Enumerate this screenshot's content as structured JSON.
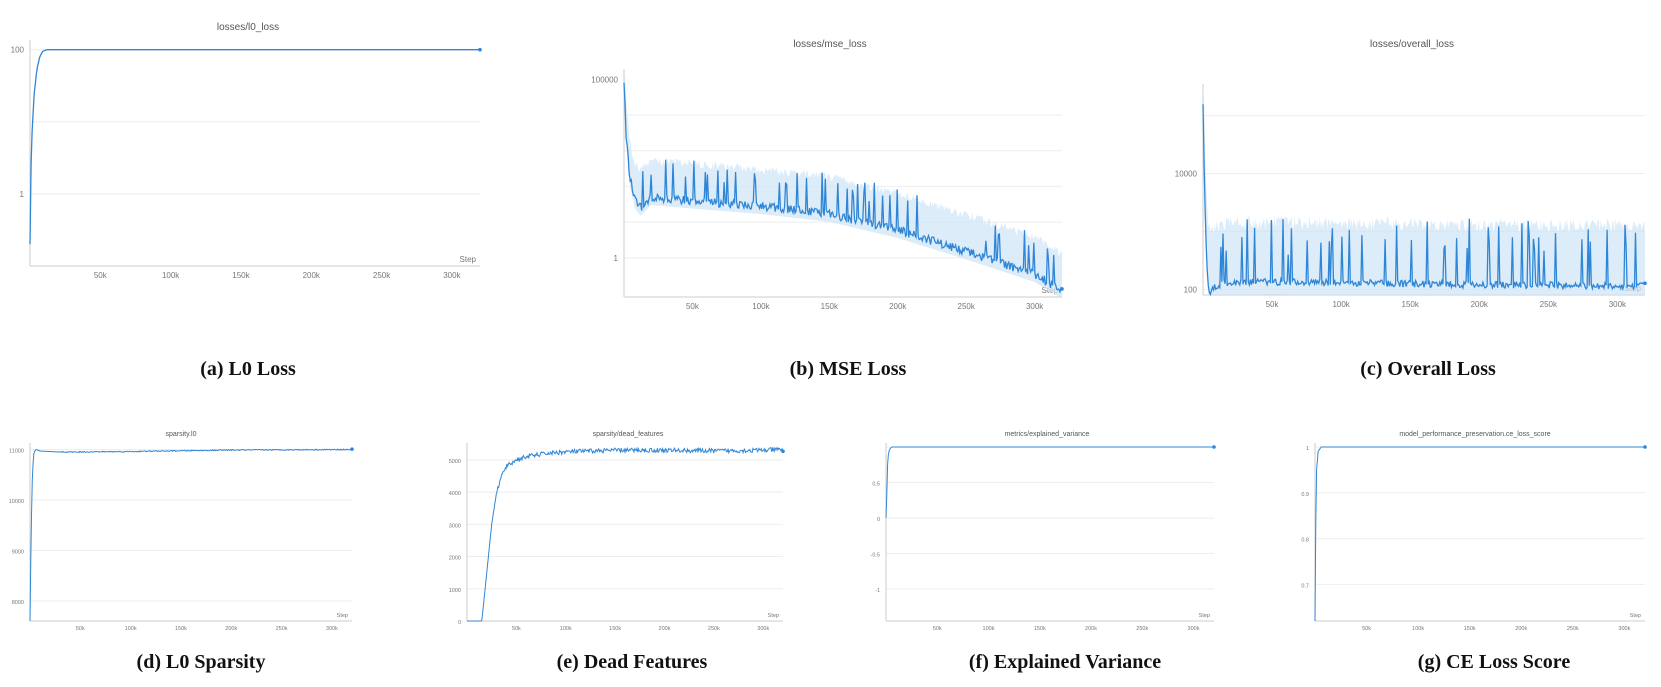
{
  "figure": {
    "colors": {
      "line": "#2f86d6",
      "band": "#cfe4f7",
      "axis": "#cccccc",
      "grid": "#eeeeee"
    }
  },
  "chart_data": [
    {
      "id": "a",
      "type": "line",
      "title": "losses/l0_loss",
      "caption": "(a) L0 Loss",
      "xlabel": "Step",
      "xlim": [
        0,
        320000
      ],
      "yscale": "log",
      "ylim": [
        0.1,
        120
      ],
      "xticks": [
        50000,
        100000,
        150000,
        200000,
        250000,
        300000
      ],
      "xtick_labels": [
        "50k",
        "100k",
        "150k",
        "200k",
        "250k",
        "300k"
      ],
      "yticks": [
        100,
        1
      ],
      "ytick_labels": [
        "100",
        "1"
      ],
      "ygrid": [
        100,
        10,
        1,
        0.1
      ],
      "band": false,
      "x": [
        0,
        800,
        1600,
        3000,
        5000,
        7000,
        9000,
        12000,
        320000
      ],
      "y": [
        0.2,
        3,
        8,
        25,
        55,
        80,
        95,
        100,
        100
      ]
    },
    {
      "id": "b",
      "type": "line",
      "title": "losses/mse_loss",
      "caption": "(b) MSE Loss",
      "xlabel": "Step",
      "xlim": [
        0,
        320000
      ],
      "yscale": "log",
      "ylim": [
        0.08,
        150000
      ],
      "xticks": [
        50000,
        100000,
        150000,
        200000,
        250000,
        300000
      ],
      "xtick_labels": [
        "50k",
        "100k",
        "150k",
        "200k",
        "250k",
        "300k"
      ],
      "yticks": [
        100000,
        1
      ],
      "ytick_labels": [
        "100000",
        "1"
      ],
      "ygrid": [
        10000,
        1000,
        100,
        10,
        1
      ],
      "band": true,
      "spikes": true,
      "noise": 0.12,
      "x": [
        0,
        1500,
        4000,
        8000,
        12000,
        20000,
        50000,
        100000,
        150000,
        200000,
        250000,
        300000,
        320000
      ],
      "y": [
        100000,
        3000,
        200,
        40,
        25,
        50,
        40,
        28,
        17,
        6,
        1.5,
        0.35,
        0.12
      ]
    },
    {
      "id": "c",
      "type": "line",
      "title": "losses/overall_loss",
      "caption": "(c) Overall Loss",
      "xlabel": "Step",
      "xlim": [
        0,
        320000
      ],
      "yscale": "log",
      "ylim": [
        80,
        300000
      ],
      "xticks": [
        50000,
        100000,
        150000,
        200000,
        250000,
        300000
      ],
      "xtick_labels": [
        "50k",
        "100k",
        "150k",
        "200k",
        "250k",
        "300k"
      ],
      "yticks": [
        10000,
        100
      ],
      "ytick_labels": [
        "10000",
        "100"
      ],
      "ygrid": [
        100000,
        10000,
        1000,
        100
      ],
      "band": true,
      "spikes": true,
      "noise": 0.06,
      "x": [
        0,
        1000,
        2500,
        4000,
        6000,
        8000,
        15000,
        50000,
        100000,
        200000,
        320000
      ],
      "y": [
        150000,
        8000,
        400,
        100,
        85,
        110,
        130,
        135,
        130,
        120,
        115
      ]
    },
    {
      "id": "d",
      "type": "line",
      "title": "sparsity.l0",
      "caption": "(d) L0 Sparsity",
      "xlabel": "Step",
      "xlim": [
        0,
        320000
      ],
      "yscale": "linear",
      "ylim": [
        7600,
        11050
      ],
      "xticks": [
        50000,
        100000,
        150000,
        200000,
        250000,
        300000
      ],
      "xtick_labels": [
        "50k",
        "100k",
        "150k",
        "200k",
        "250k",
        "300k"
      ],
      "yticks": [
        11000,
        10000,
        9000,
        8000
      ],
      "ytick_labels": [
        "11000",
        "10000",
        "9000",
        "8000"
      ],
      "ygrid": [
        11000,
        10000,
        9000,
        8000
      ],
      "band": false,
      "noise_abs": 10,
      "x": [
        0,
        1000,
        2500,
        4000,
        6000,
        10000,
        30000,
        100000,
        200000,
        320000
      ],
      "y": [
        7600,
        9200,
        10600,
        10950,
        11000,
        10970,
        10950,
        10960,
        10990,
        11000
      ]
    },
    {
      "id": "e",
      "type": "line",
      "title": "sparsity/dead_features",
      "caption": "(e) Dead Features",
      "xlabel": "Step",
      "xlim": [
        0,
        320000
      ],
      "yscale": "linear",
      "ylim": [
        0,
        5400
      ],
      "xticks": [
        50000,
        100000,
        150000,
        200000,
        250000,
        300000
      ],
      "xtick_labels": [
        "50k",
        "100k",
        "150k",
        "200k",
        "250k",
        "300k"
      ],
      "yticks": [
        5000,
        4000,
        3000,
        2000,
        1000,
        0
      ],
      "ytick_labels": [
        "5000",
        "4000",
        "3000",
        "2000",
        "1000",
        "0"
      ],
      "ygrid": [
        5000,
        4000,
        3000,
        2000,
        1000
      ],
      "band": false,
      "noise_abs": 70,
      "x": [
        0,
        15000,
        20000,
        25000,
        30000,
        35000,
        40000,
        50000,
        60000,
        80000,
        100000,
        150000,
        200000,
        250000,
        300000,
        320000
      ],
      "y": [
        0,
        0,
        1500,
        3000,
        4000,
        4500,
        4800,
        5000,
        5100,
        5200,
        5250,
        5300,
        5300,
        5280,
        5300,
        5320
      ]
    },
    {
      "id": "f",
      "type": "line",
      "title": "metrics/explained_variance",
      "caption": "(f) Explained Variance",
      "xlabel": "Step",
      "xlim": [
        0,
        320000
      ],
      "yscale": "linear",
      "ylim": [
        -1.45,
        1.0
      ],
      "xticks": [
        50000,
        100000,
        150000,
        200000,
        250000,
        300000
      ],
      "xtick_labels": [
        "50k",
        "100k",
        "150k",
        "200k",
        "250k",
        "300k"
      ],
      "yticks": [
        0.5,
        0,
        -0.5,
        -1
      ],
      "ytick_labels": [
        "0.5",
        "0",
        "-0.5",
        "-1"
      ],
      "ygrid": [
        1,
        0.5,
        0,
        -0.5,
        -1
      ],
      "band": false,
      "x": [
        0,
        700,
        1500,
        2500,
        4000,
        6000,
        320000
      ],
      "y": [
        0,
        0.3,
        0.75,
        0.92,
        0.98,
        1.0,
        1.0
      ]
    },
    {
      "id": "g",
      "type": "line",
      "title": "model_performance_preservation.ce_loss_score",
      "caption": "(g) CE Loss Score",
      "xlabel": "Step",
      "xlim": [
        0,
        320000
      ],
      "yscale": "linear",
      "ylim": [
        0.62,
        1.0
      ],
      "xticks": [
        50000,
        100000,
        150000,
        200000,
        250000,
        300000
      ],
      "xtick_labels": [
        "50k",
        "100k",
        "150k",
        "200k",
        "250k",
        "300k"
      ],
      "yticks": [
        1,
        0.9,
        0.8,
        0.7
      ],
      "ytick_labels": [
        "1",
        "0.9",
        "0.8",
        "0.7"
      ],
      "ygrid": [
        1,
        0.9,
        0.8,
        0.7
      ],
      "band": false,
      "x": [
        0,
        500,
        1500,
        3000,
        6000,
        320000
      ],
      "y": [
        0.62,
        0.8,
        0.95,
        0.99,
        1.0,
        1.0
      ]
    }
  ]
}
